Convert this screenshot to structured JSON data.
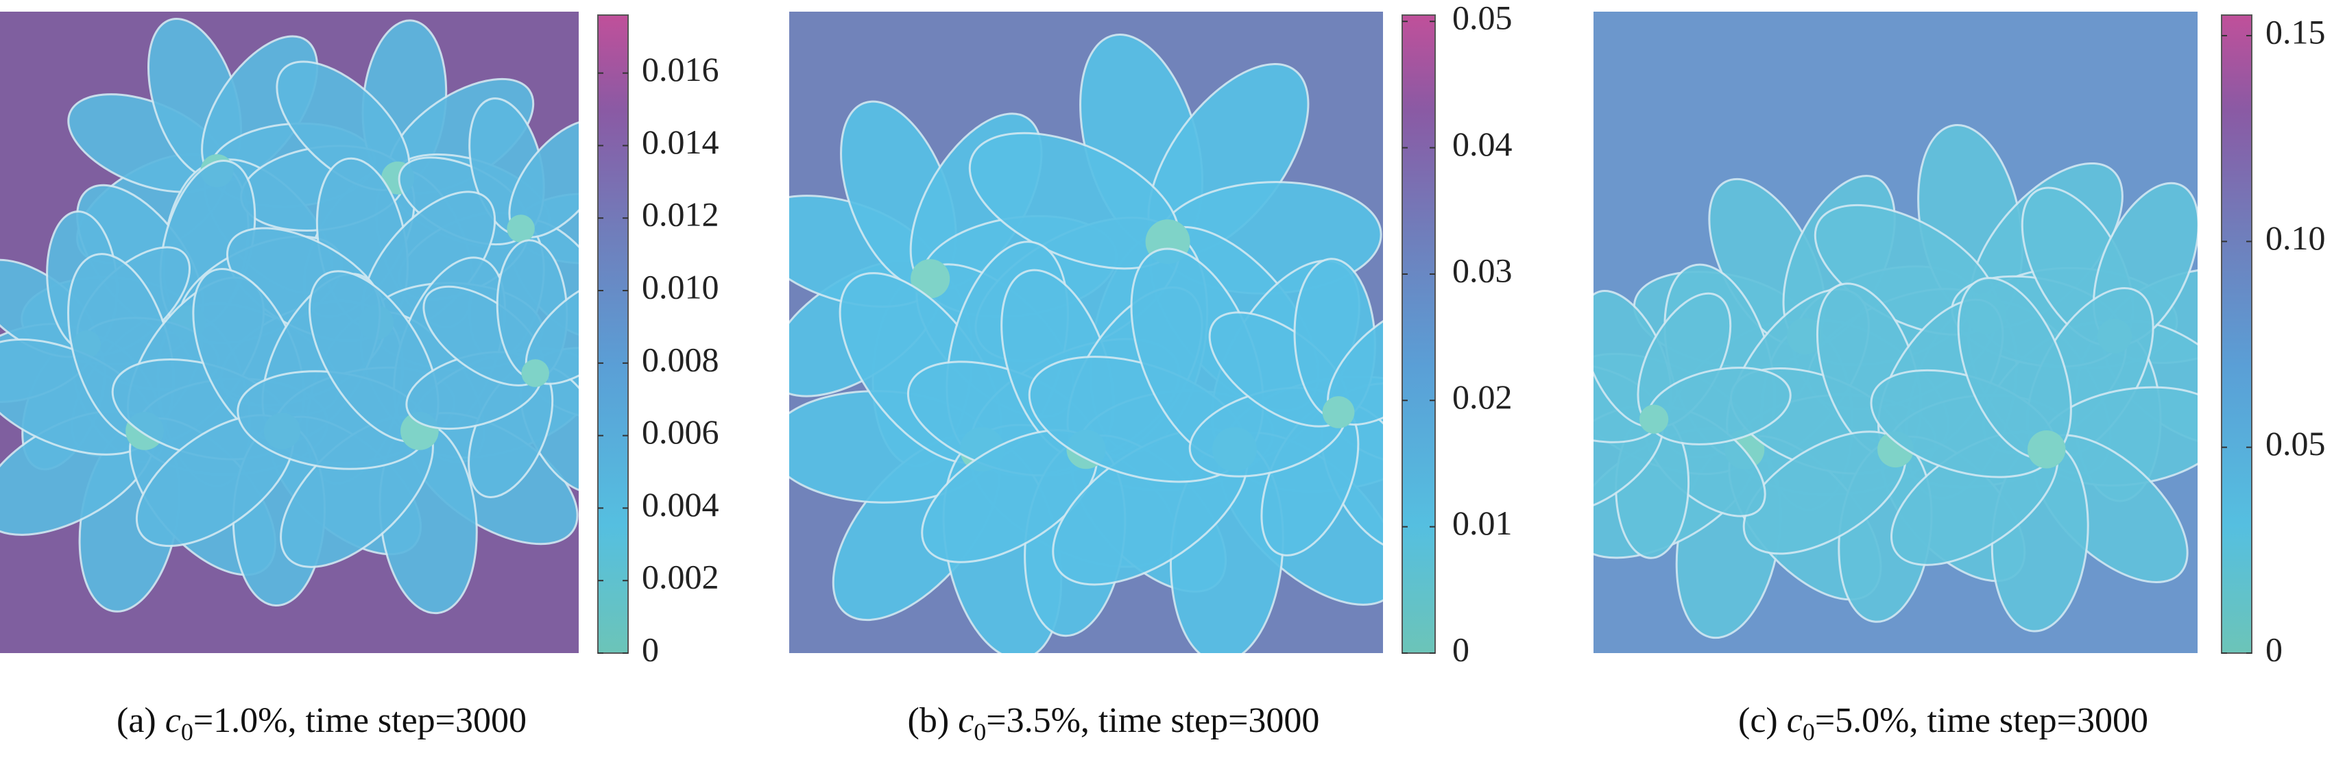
{
  "panels": [
    {
      "caption": {
        "label": "(a)",
        "variable": "c",
        "subscript": "0",
        "text": "=1.0%, time step=3000"
      },
      "colorbar": {
        "lim": [
          0,
          0.0176
        ],
        "ticks": [
          0,
          0.002,
          0.004,
          0.006,
          0.008,
          {
            "value": 0.01,
            "label": "0.010"
          },
          0.012,
          0.014,
          0.016
        ]
      }
    },
    {
      "caption": {
        "label": "(b)",
        "variable": "c",
        "subscript": "0",
        "text": "=3.5%, time step=3000"
      },
      "colorbar": {
        "lim": [
          0,
          0.0505
        ],
        "ticks": [
          0,
          0.01,
          0.02,
          0.03,
          0.04,
          0.05
        ]
      }
    },
    {
      "caption": {
        "label": "(c)",
        "variable": "c",
        "subscript": "0",
        "text": "=5.0%, time step=3000"
      },
      "colorbar": {
        "lim": [
          0,
          0.155
        ],
        "ticks": [
          0,
          0.05,
          {
            "value": 0.1,
            "label": "0.10"
          },
          0.15
        ]
      }
    }
  ]
}
